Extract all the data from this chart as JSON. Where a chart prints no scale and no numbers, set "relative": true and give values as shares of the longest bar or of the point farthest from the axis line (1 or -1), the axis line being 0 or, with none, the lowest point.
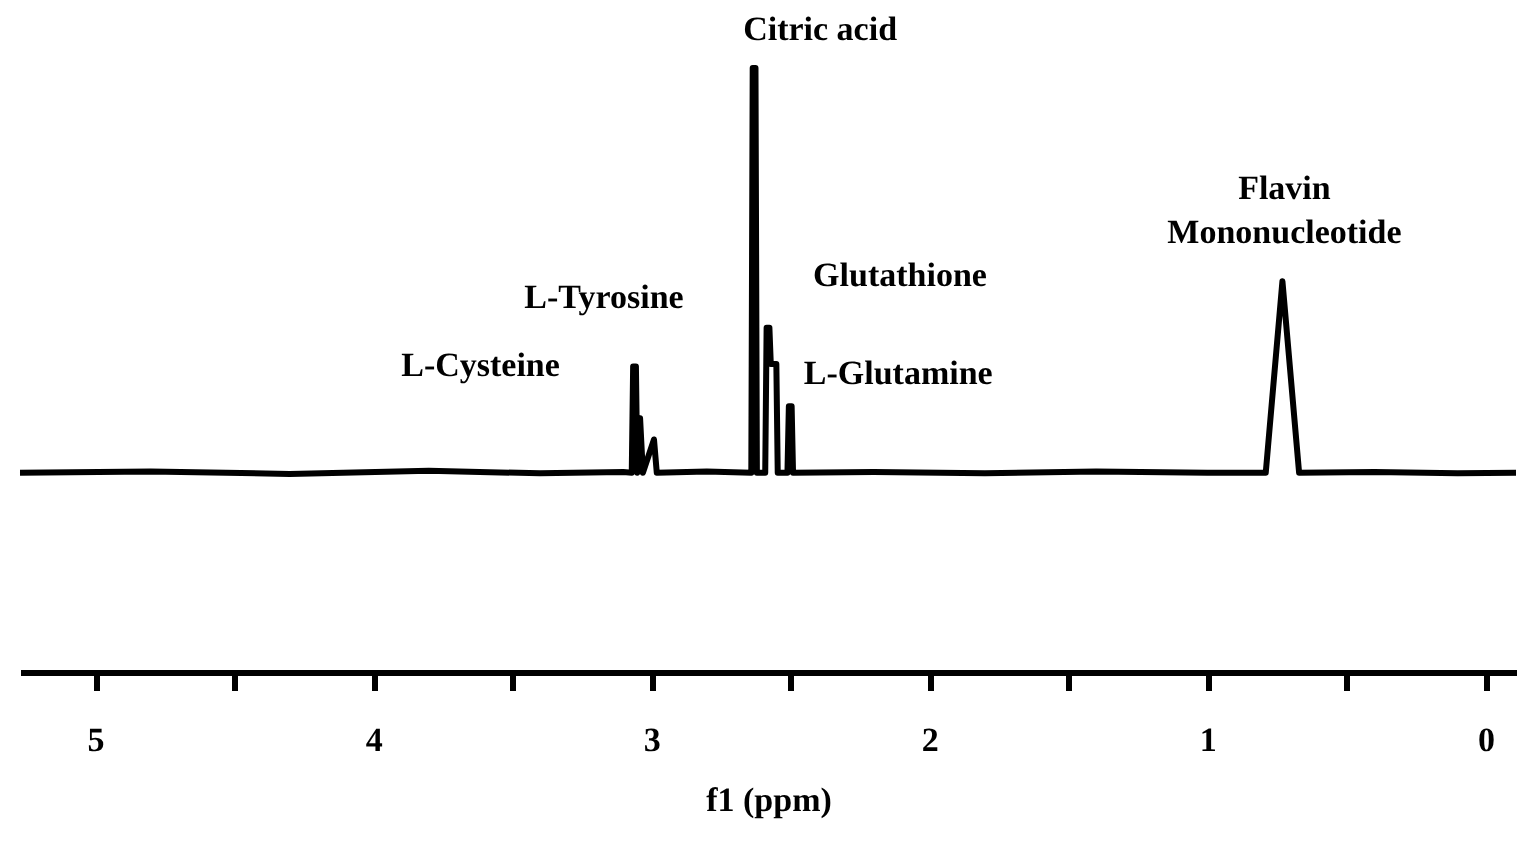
{
  "chart_data": {
    "type": "line",
    "relative": true,
    "xlabel": "f1 (ppm)",
    "color": "#000000",
    "line_style": "solid",
    "marker": "none",
    "grid": false,
    "xlim": [
      5.27,
      -0.11
    ],
    "xticks": [
      5,
      {
        "value": 4.5,
        "label": null
      },
      4,
      {
        "value": 3.5,
        "label": null
      },
      3,
      {
        "value": 2.5,
        "label": null
      },
      2,
      {
        "value": 1.5,
        "label": null
      },
      1,
      {
        "value": 0.5,
        "label": null
      },
      0
    ],
    "x": [
      5.27,
      4.8,
      4.3,
      3.8,
      3.4,
      3.1,
      3.07,
      3.065,
      3.055,
      3.05,
      3.04,
      3.03,
      2.99,
      2.98,
      2.8,
      2.64,
      2.635,
      2.625,
      2.62,
      2.59,
      2.585,
      2.575,
      2.57,
      2.55,
      2.545,
      2.51,
      2.505,
      2.495,
      2.49,
      2.2,
      1.8,
      1.4,
      1.0,
      0.79,
      0.73,
      0.67,
      0.4,
      0.1,
      -0.11
    ],
    "values": [
      0.33,
      0.332,
      0.328,
      0.333,
      0.329,
      0.331,
      0.33,
      0.506,
      0.506,
      0.33,
      0.42,
      0.33,
      0.385,
      0.33,
      0.332,
      0.33,
      1.0,
      1.0,
      0.33,
      0.33,
      0.57,
      0.57,
      0.51,
      0.51,
      0.33,
      0.33,
      0.44,
      0.44,
      0.33,
      0.331,
      0.329,
      0.332,
      0.33,
      0.33,
      0.647,
      0.33,
      0.331,
      0.329,
      0.33
    ],
    "annotations": [
      {
        "text": "Citric acid",
        "x": 2.63,
        "y": 1.0
      },
      "L-Tyrosine",
      {
        "text": "L-Cysteine",
        "x": 3.06,
        "y": 0.506
      },
      {
        "text": "Glutathione",
        "x": 2.58,
        "y": 0.57
      },
      {
        "text": "L-Glutamine",
        "x": 2.5,
        "y": 0.44
      },
      {
        "text": "Flavin\nMononucleotide",
        "x": 0.73,
        "y": 0.647
      }
    ]
  }
}
